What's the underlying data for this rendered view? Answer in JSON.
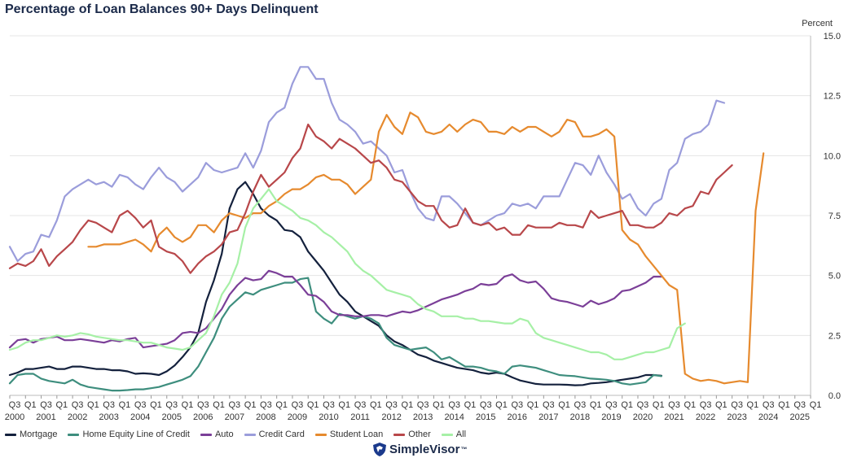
{
  "chart_data": {
    "type": "line",
    "title": "Percentage of Loan Balances 90+ Days Delinquent",
    "ylabel": "Percent",
    "xlabel": "",
    "ylim": [
      0,
      15
    ],
    "yticks": [
      "0.0",
      "2.5",
      "5.0",
      "7.5",
      "10.0",
      "12.5",
      "15.0"
    ],
    "x_start": "2000 Q3",
    "x_quarters": [
      "Q3",
      "Q1",
      "Q3",
      "Q1",
      "Q3",
      "Q1",
      "Q3",
      "Q1",
      "Q3",
      "Q1",
      "Q3",
      "Q1",
      "Q3",
      "Q1",
      "Q3",
      "Q1",
      "Q3",
      "Q1",
      "Q3",
      "Q1",
      "Q3",
      "Q1",
      "Q3",
      "Q1",
      "Q3",
      "Q1",
      "Q3",
      "Q1",
      "Q3",
      "Q1",
      "Q3",
      "Q1",
      "Q3",
      "Q1",
      "Q3",
      "Q1",
      "Q3",
      "Q1",
      "Q3",
      "Q1",
      "Q3",
      "Q1",
      "Q3",
      "Q1",
      "Q3",
      "Q1",
      "Q3",
      "Q1",
      "Q3",
      "Q1",
      "Q3",
      "Q1"
    ],
    "x_years": [
      "2000",
      "2001",
      "2002",
      "2003",
      "2004",
      "2005",
      "2006",
      "2007",
      "2008",
      "2009",
      "2010",
      "2011",
      "2012",
      "2013",
      "2014",
      "2015",
      "2016",
      "2017",
      "2018",
      "2019",
      "2020",
      "2021",
      "2022",
      "2023",
      "2024",
      "2025"
    ],
    "grid": true,
    "legend_position": "bottom",
    "series": [
      {
        "name": "Mortgage",
        "color": "#14213d",
        "start": "2000 Q3",
        "values": [
          0.85,
          0.95,
          1.1,
          1.1,
          1.15,
          1.2,
          1.1,
          1.1,
          1.2,
          1.2,
          1.15,
          1.1,
          1.1,
          1.05,
          1.05,
          1.0,
          0.9,
          0.92,
          0.9,
          0.85,
          1.0,
          1.25,
          1.6,
          2.0,
          2.6,
          3.9,
          4.8,
          5.9,
          7.8,
          8.6,
          8.9,
          8.4,
          7.8,
          7.5,
          7.3,
          6.9,
          6.85,
          6.6,
          6.0,
          5.6,
          5.2,
          4.7,
          4.2,
          3.9,
          3.5,
          3.3,
          3.1,
          2.9,
          2.5,
          2.25,
          2.1,
          1.9,
          1.7,
          1.6,
          1.45,
          1.35,
          1.25,
          1.15,
          1.1,
          1.05,
          0.95,
          0.9,
          0.95,
          0.9,
          0.75,
          0.62,
          0.55,
          0.48,
          0.45,
          0.45,
          0.45,
          0.44,
          0.42,
          0.43,
          0.5,
          0.52,
          0.55,
          0.6,
          0.65,
          0.7,
          0.75,
          0.85,
          0.85,
          0.82
        ]
      },
      {
        "name": "Home Equity Line of Credit",
        "color": "#3e8e7e",
        "start": "2000 Q3",
        "values": [
          0.5,
          0.85,
          0.9,
          0.9,
          0.7,
          0.6,
          0.55,
          0.5,
          0.65,
          0.45,
          0.35,
          0.3,
          0.25,
          0.2,
          0.2,
          0.22,
          0.25,
          0.25,
          0.3,
          0.35,
          0.45,
          0.55,
          0.65,
          0.8,
          1.2,
          1.8,
          2.4,
          3.2,
          3.7,
          4.0,
          4.3,
          4.2,
          4.4,
          4.5,
          4.6,
          4.7,
          4.7,
          4.85,
          4.9,
          3.5,
          3.2,
          3.0,
          3.4,
          3.3,
          3.2,
          3.3,
          3.2,
          3.0,
          2.4,
          2.1,
          2.0,
          1.9,
          1.95,
          2.0,
          1.8,
          1.5,
          1.6,
          1.4,
          1.2,
          1.2,
          1.15,
          1.05,
          1.0,
          0.9,
          1.2,
          1.25,
          1.2,
          1.15,
          1.05,
          0.95,
          0.85,
          0.82,
          0.8,
          0.75,
          0.7,
          0.68,
          0.65,
          0.6,
          0.5,
          0.45,
          0.5,
          0.55,
          0.85,
          0.8
        ]
      },
      {
        "name": "Auto",
        "color": "#7b3f98",
        "start": "2000 Q3",
        "values": [
          2.0,
          2.3,
          2.35,
          2.2,
          2.35,
          2.4,
          2.45,
          2.3,
          2.3,
          2.35,
          2.3,
          2.25,
          2.2,
          2.3,
          2.25,
          2.35,
          2.4,
          2.0,
          2.05,
          2.1,
          2.15,
          2.3,
          2.6,
          2.65,
          2.6,
          2.8,
          3.2,
          3.6,
          4.2,
          4.6,
          4.9,
          4.8,
          4.85,
          5.2,
          5.1,
          4.95,
          4.95,
          4.6,
          4.2,
          4.15,
          3.9,
          3.5,
          3.35,
          3.35,
          3.3,
          3.3,
          3.35,
          3.35,
          3.3,
          3.4,
          3.5,
          3.45,
          3.55,
          3.7,
          3.85,
          4.0,
          4.1,
          4.2,
          4.35,
          4.45,
          4.65,
          4.6,
          4.65,
          4.95,
          5.05,
          4.8,
          4.7,
          4.75,
          4.45,
          4.05,
          3.95,
          3.9,
          3.8,
          3.7,
          3.95,
          3.8,
          3.9,
          4.05,
          4.35,
          4.4,
          4.55,
          4.7,
          4.95,
          4.95
        ]
      },
      {
        "name": "Credit Card",
        "color": "#9b9ddb",
        "start": "2000 Q3",
        "values": [
          6.2,
          5.6,
          5.9,
          6.0,
          6.7,
          6.6,
          7.3,
          8.3,
          8.6,
          8.8,
          9.0,
          8.8,
          8.9,
          8.7,
          9.2,
          9.1,
          8.8,
          8.6,
          9.1,
          9.5,
          9.1,
          8.9,
          8.5,
          8.8,
          9.1,
          9.7,
          9.4,
          9.3,
          9.4,
          9.5,
          10.1,
          9.5,
          10.2,
          11.4,
          11.8,
          12.0,
          13.0,
          13.7,
          13.7,
          13.2,
          13.2,
          12.2,
          11.5,
          11.3,
          11.0,
          10.5,
          10.6,
          10.3,
          10.0,
          9.3,
          9.4,
          8.5,
          7.8,
          7.4,
          7.3,
          8.3,
          8.3,
          8.0,
          7.6,
          7.2,
          7.1,
          7.3,
          7.5,
          7.6,
          8.0,
          7.9,
          8.0,
          7.8,
          8.3,
          8.3,
          8.3,
          9.0,
          9.7,
          9.6,
          9.2,
          10.0,
          9.3,
          8.8,
          8.2,
          8.4,
          7.8,
          7.5,
          8.0,
          8.2,
          9.4,
          9.7,
          10.7,
          10.9,
          11.0,
          11.3,
          12.3,
          12.2
        ]
      },
      {
        "name": "Student Loan",
        "color": "#e68a2e",
        "start": "2003 Q1",
        "values": [
          6.2,
          6.2,
          6.3,
          6.3,
          6.3,
          6.4,
          6.5,
          6.3,
          6.0,
          6.7,
          7.0,
          6.6,
          6.4,
          6.6,
          7.1,
          7.1,
          6.8,
          7.3,
          7.6,
          7.5,
          7.4,
          7.6,
          7.6,
          7.9,
          8.1,
          8.4,
          8.6,
          8.6,
          8.8,
          9.1,
          9.2,
          9.0,
          9.0,
          8.8,
          8.4,
          8.7,
          9.0,
          11.0,
          11.7,
          11.2,
          10.9,
          11.8,
          11.6,
          11.0,
          10.9,
          11.0,
          11.3,
          11.0,
          11.3,
          11.5,
          11.4,
          11.0,
          11.0,
          10.9,
          11.2,
          11.0,
          11.2,
          11.2,
          11.0,
          10.8,
          11.0,
          11.5,
          11.4,
          10.8,
          10.8,
          10.9,
          11.1,
          10.8,
          6.9,
          6.5,
          6.3,
          5.8,
          5.4,
          5.0,
          4.6,
          4.4,
          0.9,
          0.7,
          0.6,
          0.65,
          0.6,
          0.5,
          0.55,
          0.6,
          0.55,
          7.7,
          10.1
        ]
      },
      {
        "name": "Other",
        "color": "#b8474a",
        "start": "2000 Q3",
        "values": [
          5.3,
          5.5,
          5.4,
          5.6,
          6.1,
          5.4,
          5.8,
          6.1,
          6.4,
          6.9,
          7.3,
          7.2,
          7.0,
          6.8,
          7.5,
          7.7,
          7.4,
          7.0,
          7.3,
          6.2,
          6.0,
          5.9,
          5.6,
          5.1,
          5.5,
          5.8,
          6.0,
          6.3,
          6.8,
          6.9,
          7.6,
          8.5,
          9.2,
          8.7,
          9.0,
          9.3,
          9.9,
          10.3,
          11.3,
          10.8,
          10.6,
          10.3,
          10.7,
          10.5,
          10.3,
          10.0,
          9.7,
          9.8,
          9.5,
          9.0,
          8.9,
          8.5,
          8.1,
          7.9,
          7.9,
          7.3,
          7.0,
          7.1,
          7.8,
          7.2,
          7.1,
          7.2,
          6.9,
          7.0,
          6.7,
          6.7,
          7.1,
          7.0,
          7.0,
          7.0,
          7.2,
          7.1,
          7.1,
          7.0,
          7.7,
          7.4,
          7.5,
          7.6,
          7.7,
          7.1,
          7.1,
          7.0,
          7.0,
          7.2,
          7.6,
          7.5,
          7.8,
          7.9,
          8.5,
          8.4,
          9.0,
          9.3,
          9.6
        ]
      },
      {
        "name": "All",
        "color": "#a6f0a6",
        "start": "2000 Q3",
        "values": [
          1.9,
          2.0,
          2.2,
          2.3,
          2.3,
          2.4,
          2.5,
          2.45,
          2.5,
          2.6,
          2.55,
          2.45,
          2.4,
          2.35,
          2.3,
          2.3,
          2.25,
          2.2,
          2.2,
          2.1,
          2.0,
          1.95,
          1.9,
          2.0,
          2.3,
          2.6,
          3.3,
          4.2,
          4.7,
          5.5,
          7.0,
          7.8,
          8.2,
          8.6,
          8.1,
          7.9,
          7.7,
          7.4,
          7.3,
          7.1,
          6.8,
          6.6,
          6.3,
          6.0,
          5.5,
          5.2,
          5.0,
          4.7,
          4.4,
          4.3,
          4.2,
          4.1,
          3.8,
          3.6,
          3.5,
          3.3,
          3.3,
          3.3,
          3.2,
          3.2,
          3.1,
          3.1,
          3.05,
          3.0,
          3.0,
          3.2,
          3.1,
          2.6,
          2.4,
          2.3,
          2.2,
          2.1,
          2.0,
          1.9,
          1.8,
          1.8,
          1.7,
          1.5,
          1.5,
          1.6,
          1.7,
          1.8,
          1.8,
          1.9,
          2.0,
          2.8,
          3.0
        ]
      }
    ]
  },
  "brand": {
    "name": "SimpleVisor",
    "tm": "™"
  }
}
